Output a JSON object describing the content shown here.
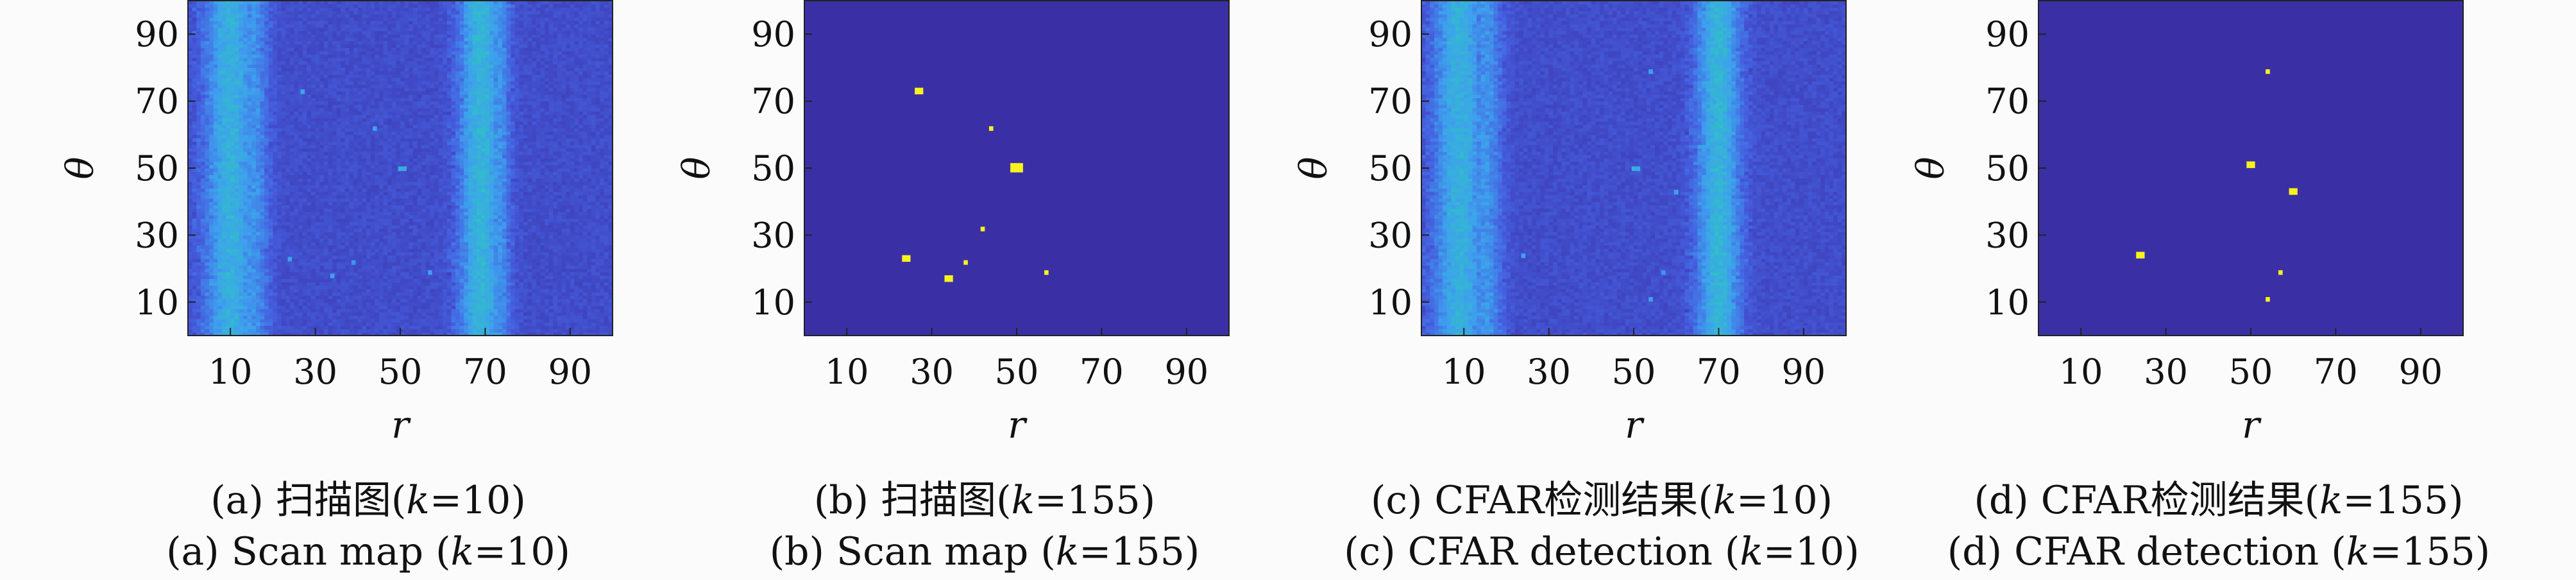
{
  "chart_data": [
    {
      "type": "heatmap",
      "id": "a",
      "caption_cn": "(a) 扫描图(k=10)",
      "caption_en": "(a) Scan map (k=10)",
      "xlabel": "r",
      "ylabel": "θ",
      "xlim": [
        0,
        100
      ],
      "ylim": [
        0,
        100
      ],
      "xticks": [
        10,
        30,
        50,
        70,
        90
      ],
      "yticks": [
        10,
        30,
        50,
        70,
        90
      ],
      "colormap": [
        "#3b2fa6",
        "#4560e0",
        "#3ea0ee",
        "#2ec4c2",
        "#f8f21c"
      ],
      "background_level": 0.14,
      "noise_amplitude": 0.1,
      "bands": [
        {
          "r_center": 10,
          "r_width": 6,
          "level": 0.45
        },
        {
          "r_center": 15,
          "r_width": 4,
          "level": 0.3
        },
        {
          "r_center": 69,
          "r_width": 5,
          "level": 0.48
        },
        {
          "r_center": 73,
          "r_width": 3,
          "level": 0.3
        }
      ],
      "points": [
        {
          "r": 27,
          "theta": 73,
          "level": 0.55
        },
        {
          "r": 44,
          "theta": 62,
          "level": 0.5
        },
        {
          "r": 50,
          "theta": 50,
          "level": 0.62
        },
        {
          "r": 51,
          "theta": 50,
          "level": 0.58
        },
        {
          "r": 24,
          "theta": 23,
          "level": 0.5
        },
        {
          "r": 34,
          "theta": 18,
          "level": 0.5
        },
        {
          "r": 39,
          "theta": 22,
          "level": 0.45
        },
        {
          "r": 57,
          "theta": 19,
          "level": 0.5
        }
      ]
    },
    {
      "type": "heatmap",
      "id": "b",
      "caption_cn": "(b) 扫描图(k=155)",
      "caption_en": "(b) Scan map (k=155)",
      "xlabel": "r",
      "ylabel": "θ",
      "xlim": [
        0,
        100
      ],
      "ylim": [
        0,
        100
      ],
      "xticks": [
        10,
        30,
        50,
        70,
        90
      ],
      "yticks": [
        10,
        30,
        50,
        70,
        90
      ],
      "colormap": [
        "#3b2fa6",
        "#4560e0",
        "#3ea0ee",
        "#2ec4c2",
        "#f8f21c"
      ],
      "background_level": 0.0,
      "noise_amplitude": 0.0,
      "bands": [],
      "points": [
        {
          "r": 27,
          "theta": 73,
          "level": 1.0,
          "w": 2
        },
        {
          "r": 44,
          "theta": 62,
          "level": 1.0,
          "w": 1
        },
        {
          "r": 50,
          "theta": 50,
          "level": 1.0,
          "w": 3
        },
        {
          "r": 42,
          "theta": 32,
          "level": 1.0,
          "w": 1
        },
        {
          "r": 24,
          "theta": 23,
          "level": 1.0,
          "w": 2
        },
        {
          "r": 38,
          "theta": 22,
          "level": 1.0,
          "w": 1
        },
        {
          "r": 34,
          "theta": 17,
          "level": 1.0,
          "w": 2
        },
        {
          "r": 57,
          "theta": 19,
          "level": 1.0,
          "w": 1
        }
      ]
    },
    {
      "type": "heatmap",
      "id": "c",
      "caption_cn": "(c) CFAR检测结果(k=10)",
      "caption_en": "(c) CFAR detection (k=10)",
      "xlabel": "r",
      "ylabel": "θ",
      "xlim": [
        0,
        100
      ],
      "ylim": [
        0,
        100
      ],
      "xticks": [
        10,
        30,
        50,
        70,
        90
      ],
      "yticks": [
        10,
        30,
        50,
        70,
        90
      ],
      "colormap": [
        "#3b2fa6",
        "#4560e0",
        "#3ea0ee",
        "#2ec4c2",
        "#f8f21c"
      ],
      "background_level": 0.14,
      "noise_amplitude": 0.1,
      "bands": [
        {
          "r_center": 9,
          "r_width": 6,
          "level": 0.45
        },
        {
          "r_center": 15,
          "r_width": 4,
          "level": 0.3
        },
        {
          "r_center": 70,
          "r_width": 5,
          "level": 0.48
        },
        {
          "r_center": 67,
          "r_width": 3,
          "level": 0.3
        }
      ],
      "points": [
        {
          "r": 54,
          "theta": 79,
          "level": 0.5
        },
        {
          "r": 69,
          "theta": 70,
          "level": 0.5
        },
        {
          "r": 50,
          "theta": 50,
          "level": 0.62
        },
        {
          "r": 51,
          "theta": 50,
          "level": 0.58
        },
        {
          "r": 60,
          "theta": 43,
          "level": 0.5
        },
        {
          "r": 24,
          "theta": 24,
          "level": 0.5
        },
        {
          "r": 57,
          "theta": 19,
          "level": 0.45
        },
        {
          "r": 54,
          "theta": 11,
          "level": 0.5
        }
      ]
    },
    {
      "type": "heatmap",
      "id": "d",
      "caption_cn": "(d) CFAR检测结果(k=155)",
      "caption_en": "(d) CFAR detection (k=155)",
      "xlabel": "r",
      "ylabel": "θ",
      "xlim": [
        0,
        100
      ],
      "ylim": [
        0,
        100
      ],
      "xticks": [
        10,
        30,
        50,
        70,
        90
      ],
      "yticks": [
        10,
        30,
        50,
        70,
        90
      ],
      "colormap": [
        "#3b2fa6",
        "#4560e0",
        "#3ea0ee",
        "#2ec4c2",
        "#f8f21c"
      ],
      "background_level": 0.0,
      "noise_amplitude": 0.0,
      "bands": [],
      "points": [
        {
          "r": 54,
          "theta": 79,
          "level": 1.0,
          "w": 1
        },
        {
          "r": 50,
          "theta": 51,
          "level": 1.0,
          "w": 2
        },
        {
          "r": 60,
          "theta": 43,
          "level": 1.0,
          "w": 2
        },
        {
          "r": 24,
          "theta": 24,
          "level": 1.0,
          "w": 2
        },
        {
          "r": 57,
          "theta": 19,
          "level": 1.0,
          "w": 1
        },
        {
          "r": 54,
          "theta": 11,
          "level": 1.0,
          "w": 1
        }
      ]
    }
  ]
}
